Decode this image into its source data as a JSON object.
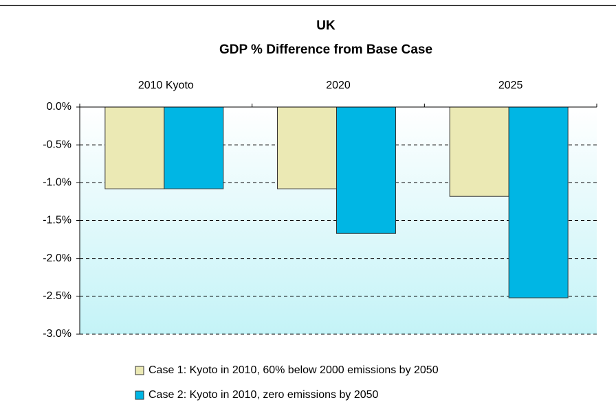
{
  "chart_data": {
    "type": "bar",
    "title": "UK",
    "subtitle": "GDP % Difference from Base Case",
    "categories": [
      "2010 Kyoto",
      "2020",
      "2025"
    ],
    "series": [
      {
        "name": "Case 1: Kyoto in 2010, 60% below 2000 emissions by 2050",
        "color": "#ebe9b4",
        "values": [
          -1.08,
          -1.08,
          -1.18
        ]
      },
      {
        "name": "Case 2: Kyoto in 2010, zero emissions by 2050",
        "color": "#00b6e4",
        "values": [
          -1.08,
          -1.67,
          -2.52
        ]
      }
    ],
    "ylim": [
      -3.0,
      0.0
    ],
    "yticks": [
      {
        "value": 0,
        "label": "0.0%"
      },
      {
        "value": -0.5,
        "label": "-0.5%"
      },
      {
        "value": -1.0,
        "label": "-1.0%"
      },
      {
        "value": -1.5,
        "label": "-1.5%"
      },
      {
        "value": -2.0,
        "label": "-2.0%"
      },
      {
        "value": -2.5,
        "label": "-2.5%"
      },
      {
        "value": -3.0,
        "label": "-3.0%"
      }
    ],
    "grid": true,
    "legend": "bottom"
  }
}
